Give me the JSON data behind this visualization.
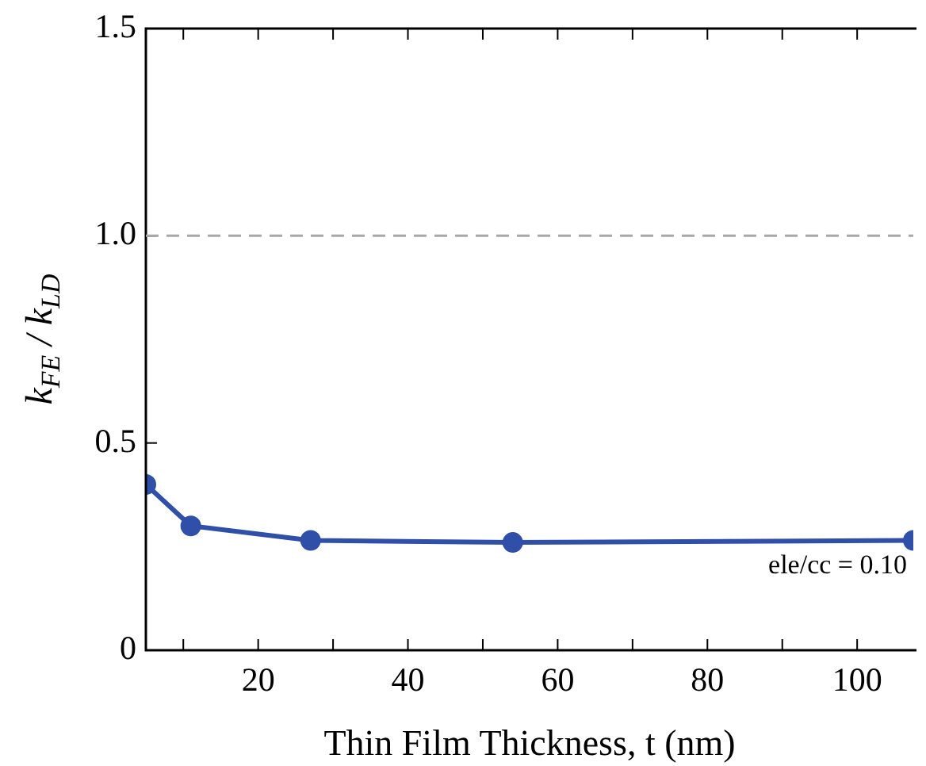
{
  "chart_data": {
    "type": "line",
    "xlabel": "Thin Film Thickness, t (nm)",
    "ylabel": "k$_{FE}$ / k$_{LD}$",
    "x": [
      5,
      11,
      27,
      54,
      107.5
    ],
    "series": [
      {
        "color": "#2f4fa8",
        "values": [
          0.4,
          0.3,
          0.265,
          0.26,
          0.265
        ]
      }
    ],
    "marker": "circle",
    "line_style": "solid",
    "grid": false,
    "legend": false,
    "xlim": [
      5,
      107.5
    ],
    "xticks": [
      {
        "value": 10,
        "label": null
      },
      20,
      {
        "value": 30,
        "label": null
      },
      40,
      {
        "value": 50,
        "label": null
      },
      60,
      {
        "value": 70,
        "label": null
      },
      80,
      {
        "value": 90,
        "label": null
      },
      100
    ],
    "ylim": [
      0,
      1.5
    ],
    "yticks": [
      0,
      0.5,
      {
        "value": 1,
        "label": "1.0"
      },
      1.5
    ],
    "ref_lines": [
      {
        "axis": "y",
        "value": 1,
        "color": "#a8a8a8",
        "line_style": "dashed"
      }
    ],
    "annotations": [
      "ele/cc = 0.10"
    ]
  }
}
